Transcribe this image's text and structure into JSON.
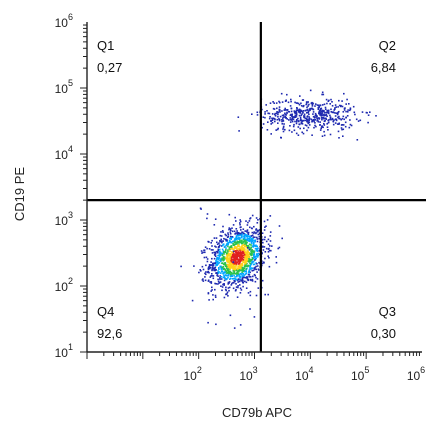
{
  "chart_data": {
    "type": "scatter",
    "title": "",
    "xlabel": "CD79b APC",
    "ylabel": "CD19 PE",
    "xscale": "log",
    "yscale": "log",
    "xlim": [
      1,
      1000000
    ],
    "ylim": [
      10,
      1000000
    ],
    "x_ticks": [
      {
        "base": "10",
        "exp": "2",
        "value": 100
      },
      {
        "base": "10",
        "exp": "3",
        "value": 1000
      },
      {
        "base": "10",
        "exp": "4",
        "value": 10000
      },
      {
        "base": "10",
        "exp": "5",
        "value": 100000
      },
      {
        "base": "10",
        "exp": "6",
        "value": 1000000
      }
    ],
    "y_ticks": [
      {
        "base": "10",
        "exp": "1",
        "value": 10
      },
      {
        "base": "10",
        "exp": "2",
        "value": 100
      },
      {
        "base": "10",
        "exp": "3",
        "value": 1000
      },
      {
        "base": "10",
        "exp": "4",
        "value": 10000
      },
      {
        "base": "10",
        "exp": "5",
        "value": 100000
      },
      {
        "base": "10",
        "exp": "6",
        "value": 1000000
      }
    ],
    "gates": {
      "x": 1300,
      "y": 2000
    },
    "quadrants": [
      {
        "name": "Q1",
        "value": "0,27",
        "position": "top-left"
      },
      {
        "name": "Q2",
        "value": "6,84",
        "position": "top-right"
      },
      {
        "name": "Q3",
        "value": "0,30",
        "position": "bottom-right"
      },
      {
        "name": "Q4",
        "value": "92,6",
        "position": "bottom-left"
      }
    ],
    "populations": [
      {
        "name": "Q4 cluster",
        "x_center": 480,
        "y_center": 280,
        "sx": 0.25,
        "sy": 0.22,
        "count": 1400
      },
      {
        "name": "Q2 cluster",
        "x_center": 9000,
        "y_center": 40000,
        "sx": 0.42,
        "sy": 0.13,
        "count": 520
      }
    ],
    "colors": {
      "sparse": "#1f2ab0",
      "low": "#00a6ff",
      "mid": "#29c24a",
      "high": "#ffd21a",
      "peak": "#e02020",
      "gate": "#000000"
    }
  }
}
